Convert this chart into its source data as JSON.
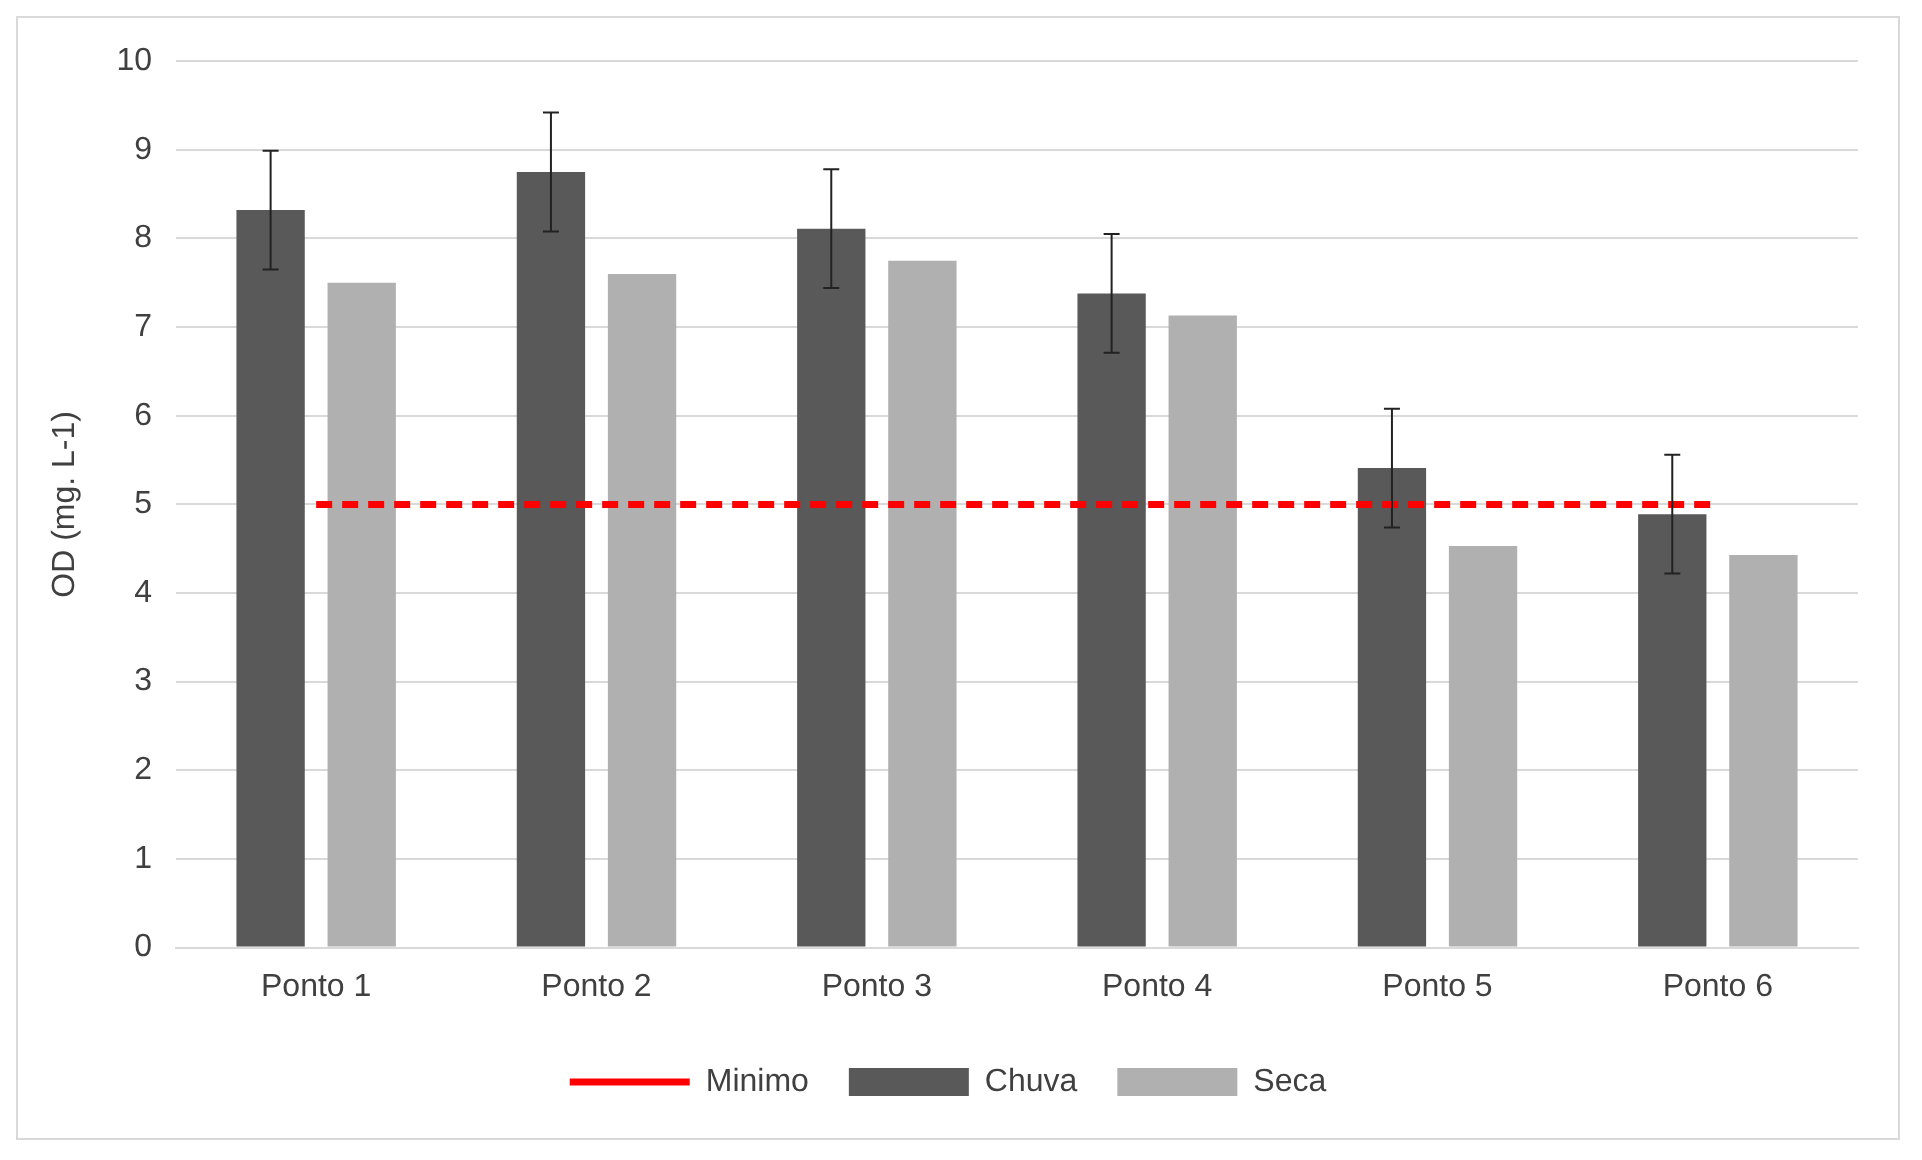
{
  "chart_data": {
    "type": "bar",
    "ylabel": "OD (mg. L-1)",
    "categories": [
      "Ponto 1",
      "Ponto 2",
      "Ponto 3",
      "Ponto 4",
      "Ponto 5",
      "Ponto 6"
    ],
    "series": [
      {
        "name": "Chuva",
        "color": "#595959",
        "values": [
          8.32,
          8.75,
          8.11,
          7.38,
          5.41,
          4.89
        ],
        "errors": [
          0.67,
          0.67,
          0.67,
          0.67,
          0.67,
          0.67
        ]
      },
      {
        "name": "Seca",
        "color": "#b0b0b0",
        "values": [
          7.5,
          7.6,
          7.75,
          7.13,
          4.53,
          4.43
        ]
      },
      {
        "name": "Minimo",
        "type": "line",
        "color": "#ff0000",
        "values": [
          5,
          5,
          5,
          5,
          5,
          5
        ],
        "line_style": "dashed",
        "marker": "none"
      }
    ],
    "ylim": [
      0,
      10
    ],
    "yticks": [
      0,
      1,
      2,
      3,
      4,
      5,
      6,
      7,
      8,
      9,
      10
    ],
    "grid": "y",
    "legend": "bottom"
  }
}
